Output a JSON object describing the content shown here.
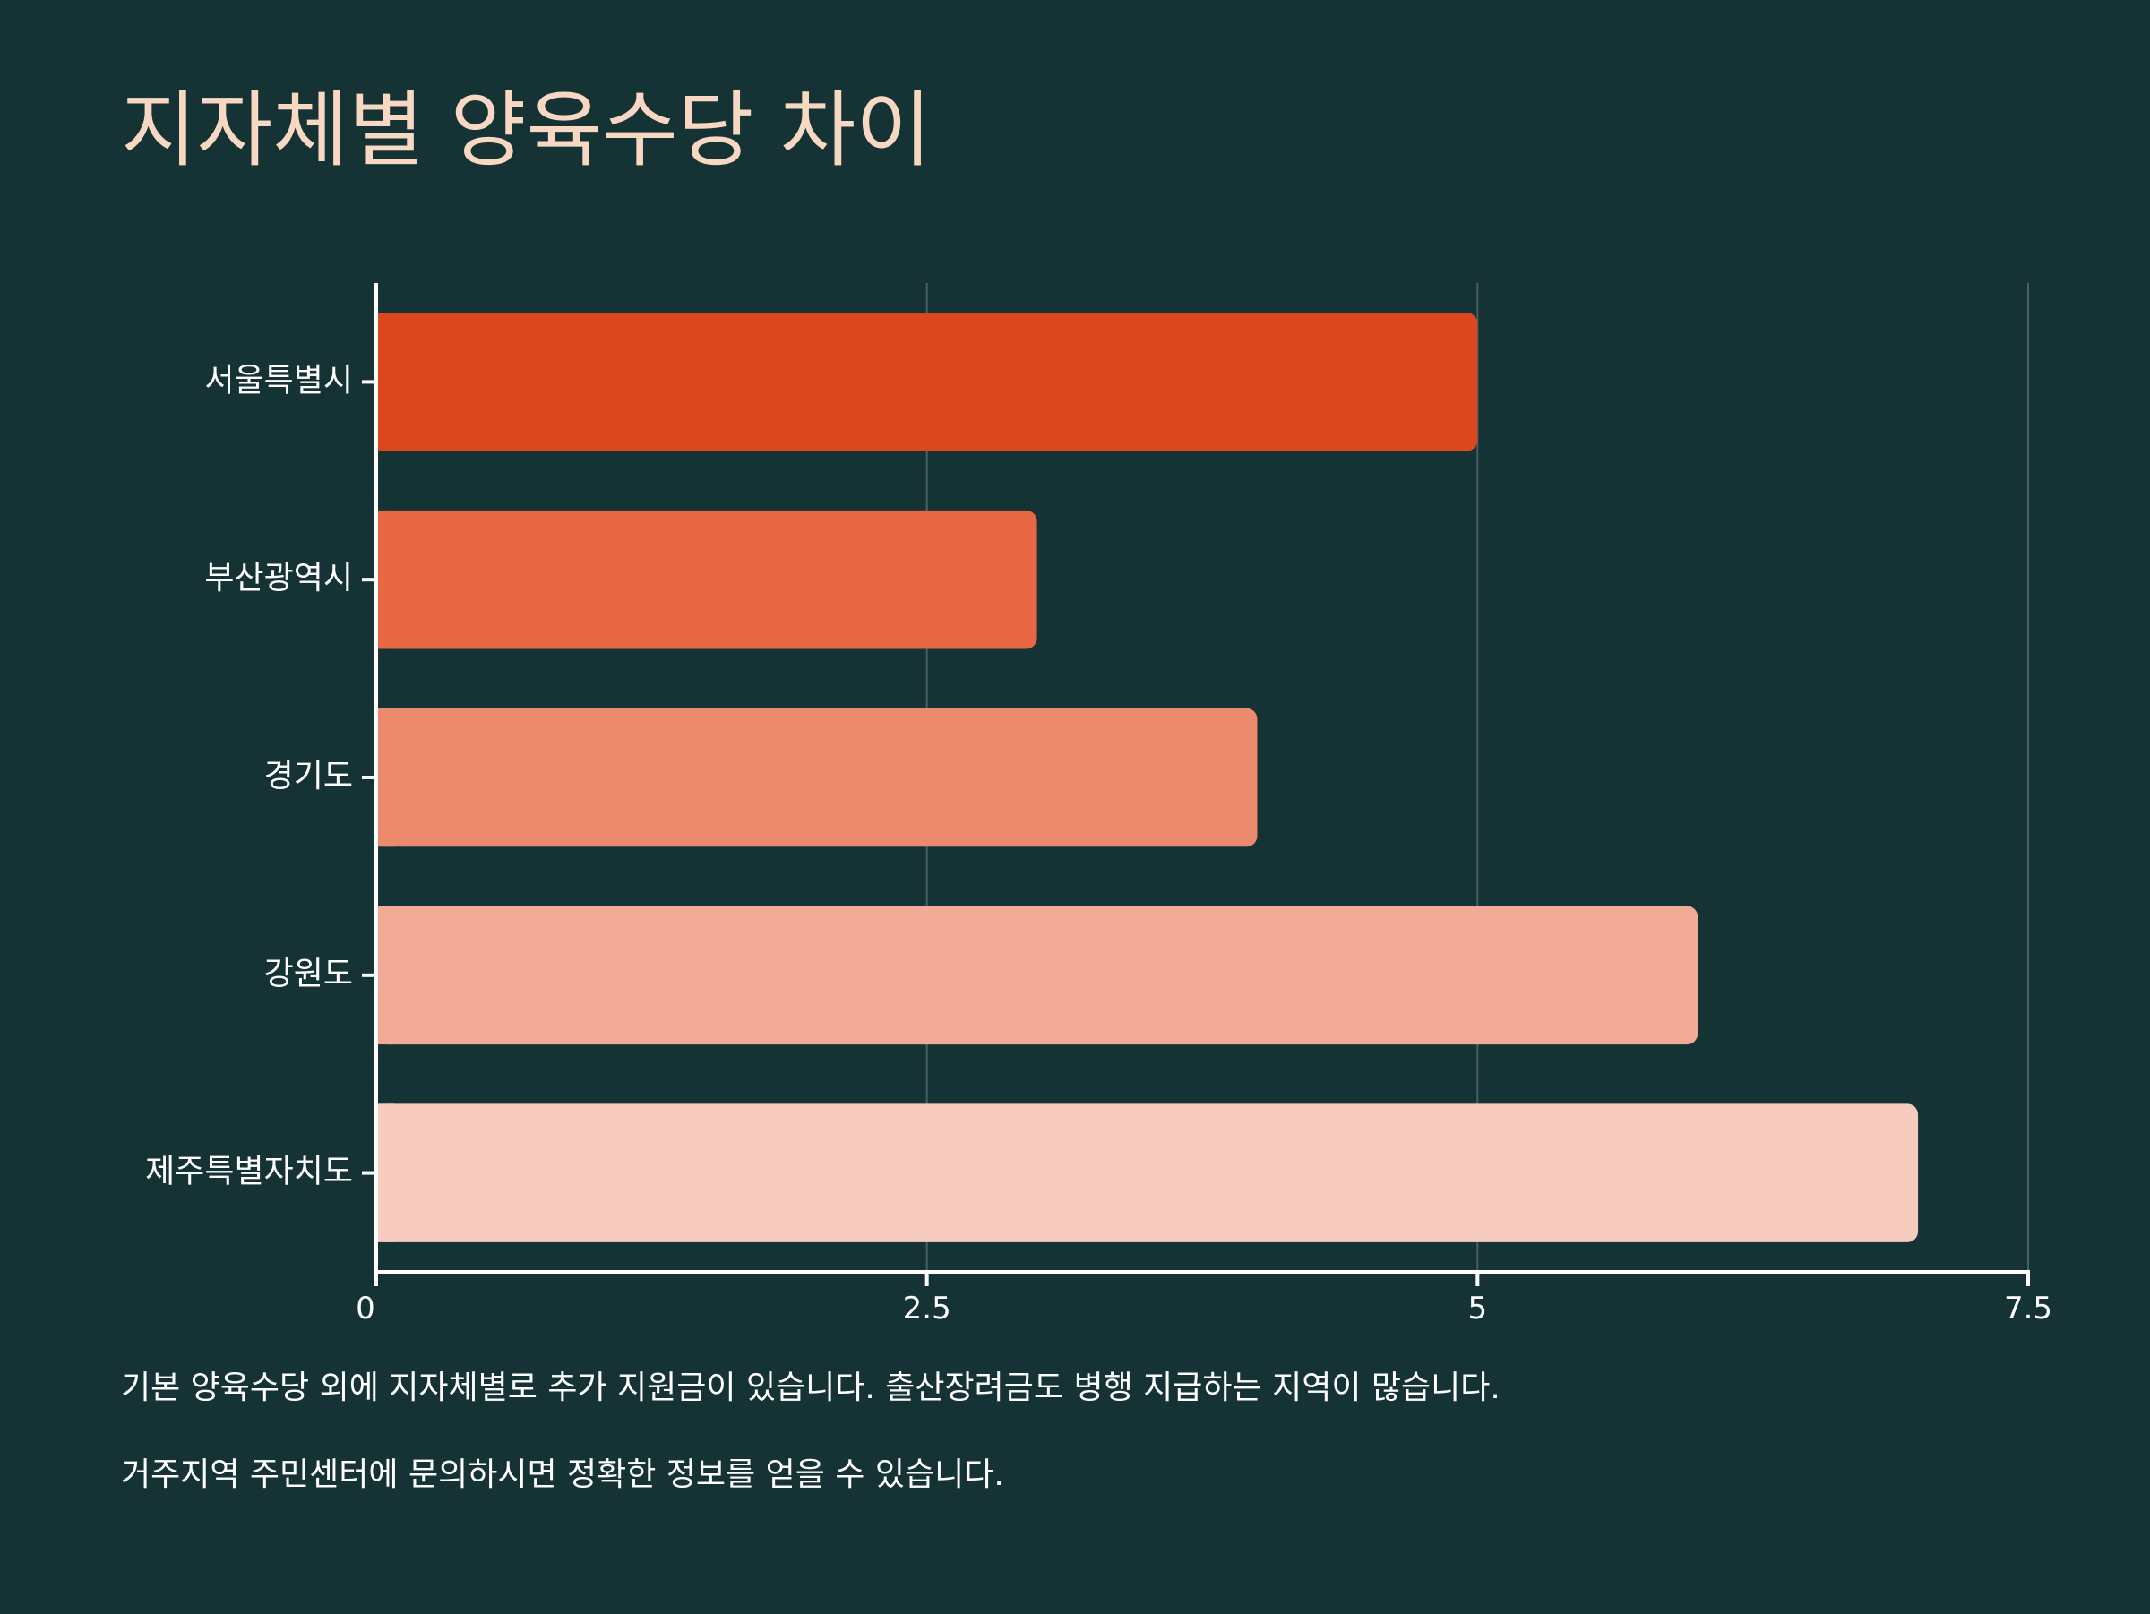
{
  "title": "지자체별 양육수당 차이",
  "chart_data": {
    "type": "bar",
    "orientation": "horizontal",
    "categories": [
      "서울특별시",
      "부산광역시",
      "경기도",
      "강원도",
      "제주특별자치도"
    ],
    "values": [
      5,
      3,
      4,
      6,
      7
    ],
    "colors": [
      "#DB481E",
      "#E76842",
      "#EC8A6E",
      "#F0AA95",
      "#F7CBBE"
    ],
    "xlim": [
      0,
      7.5
    ],
    "xticks": [
      0,
      2.5,
      5,
      7.5
    ],
    "xtick_labels": [
      "0",
      "2.5",
      "5",
      "7.5"
    ],
    "grid": true,
    "xlabel": "",
    "ylabel": ""
  },
  "notes": [
    "기본 양육수당 외에 지자체별로 추가 지원금이 있습니다. 출산장려금도 병행 지급하는 지역이 많습니다.",
    "거주지역 주민센터에 문의하시면 정확한 정보를 얻을 수 있습니다."
  ],
  "colors": {
    "background": "#153234",
    "title": "#F8D8C3",
    "axis": "#FFFFFF",
    "grid": "#4A6062"
  }
}
